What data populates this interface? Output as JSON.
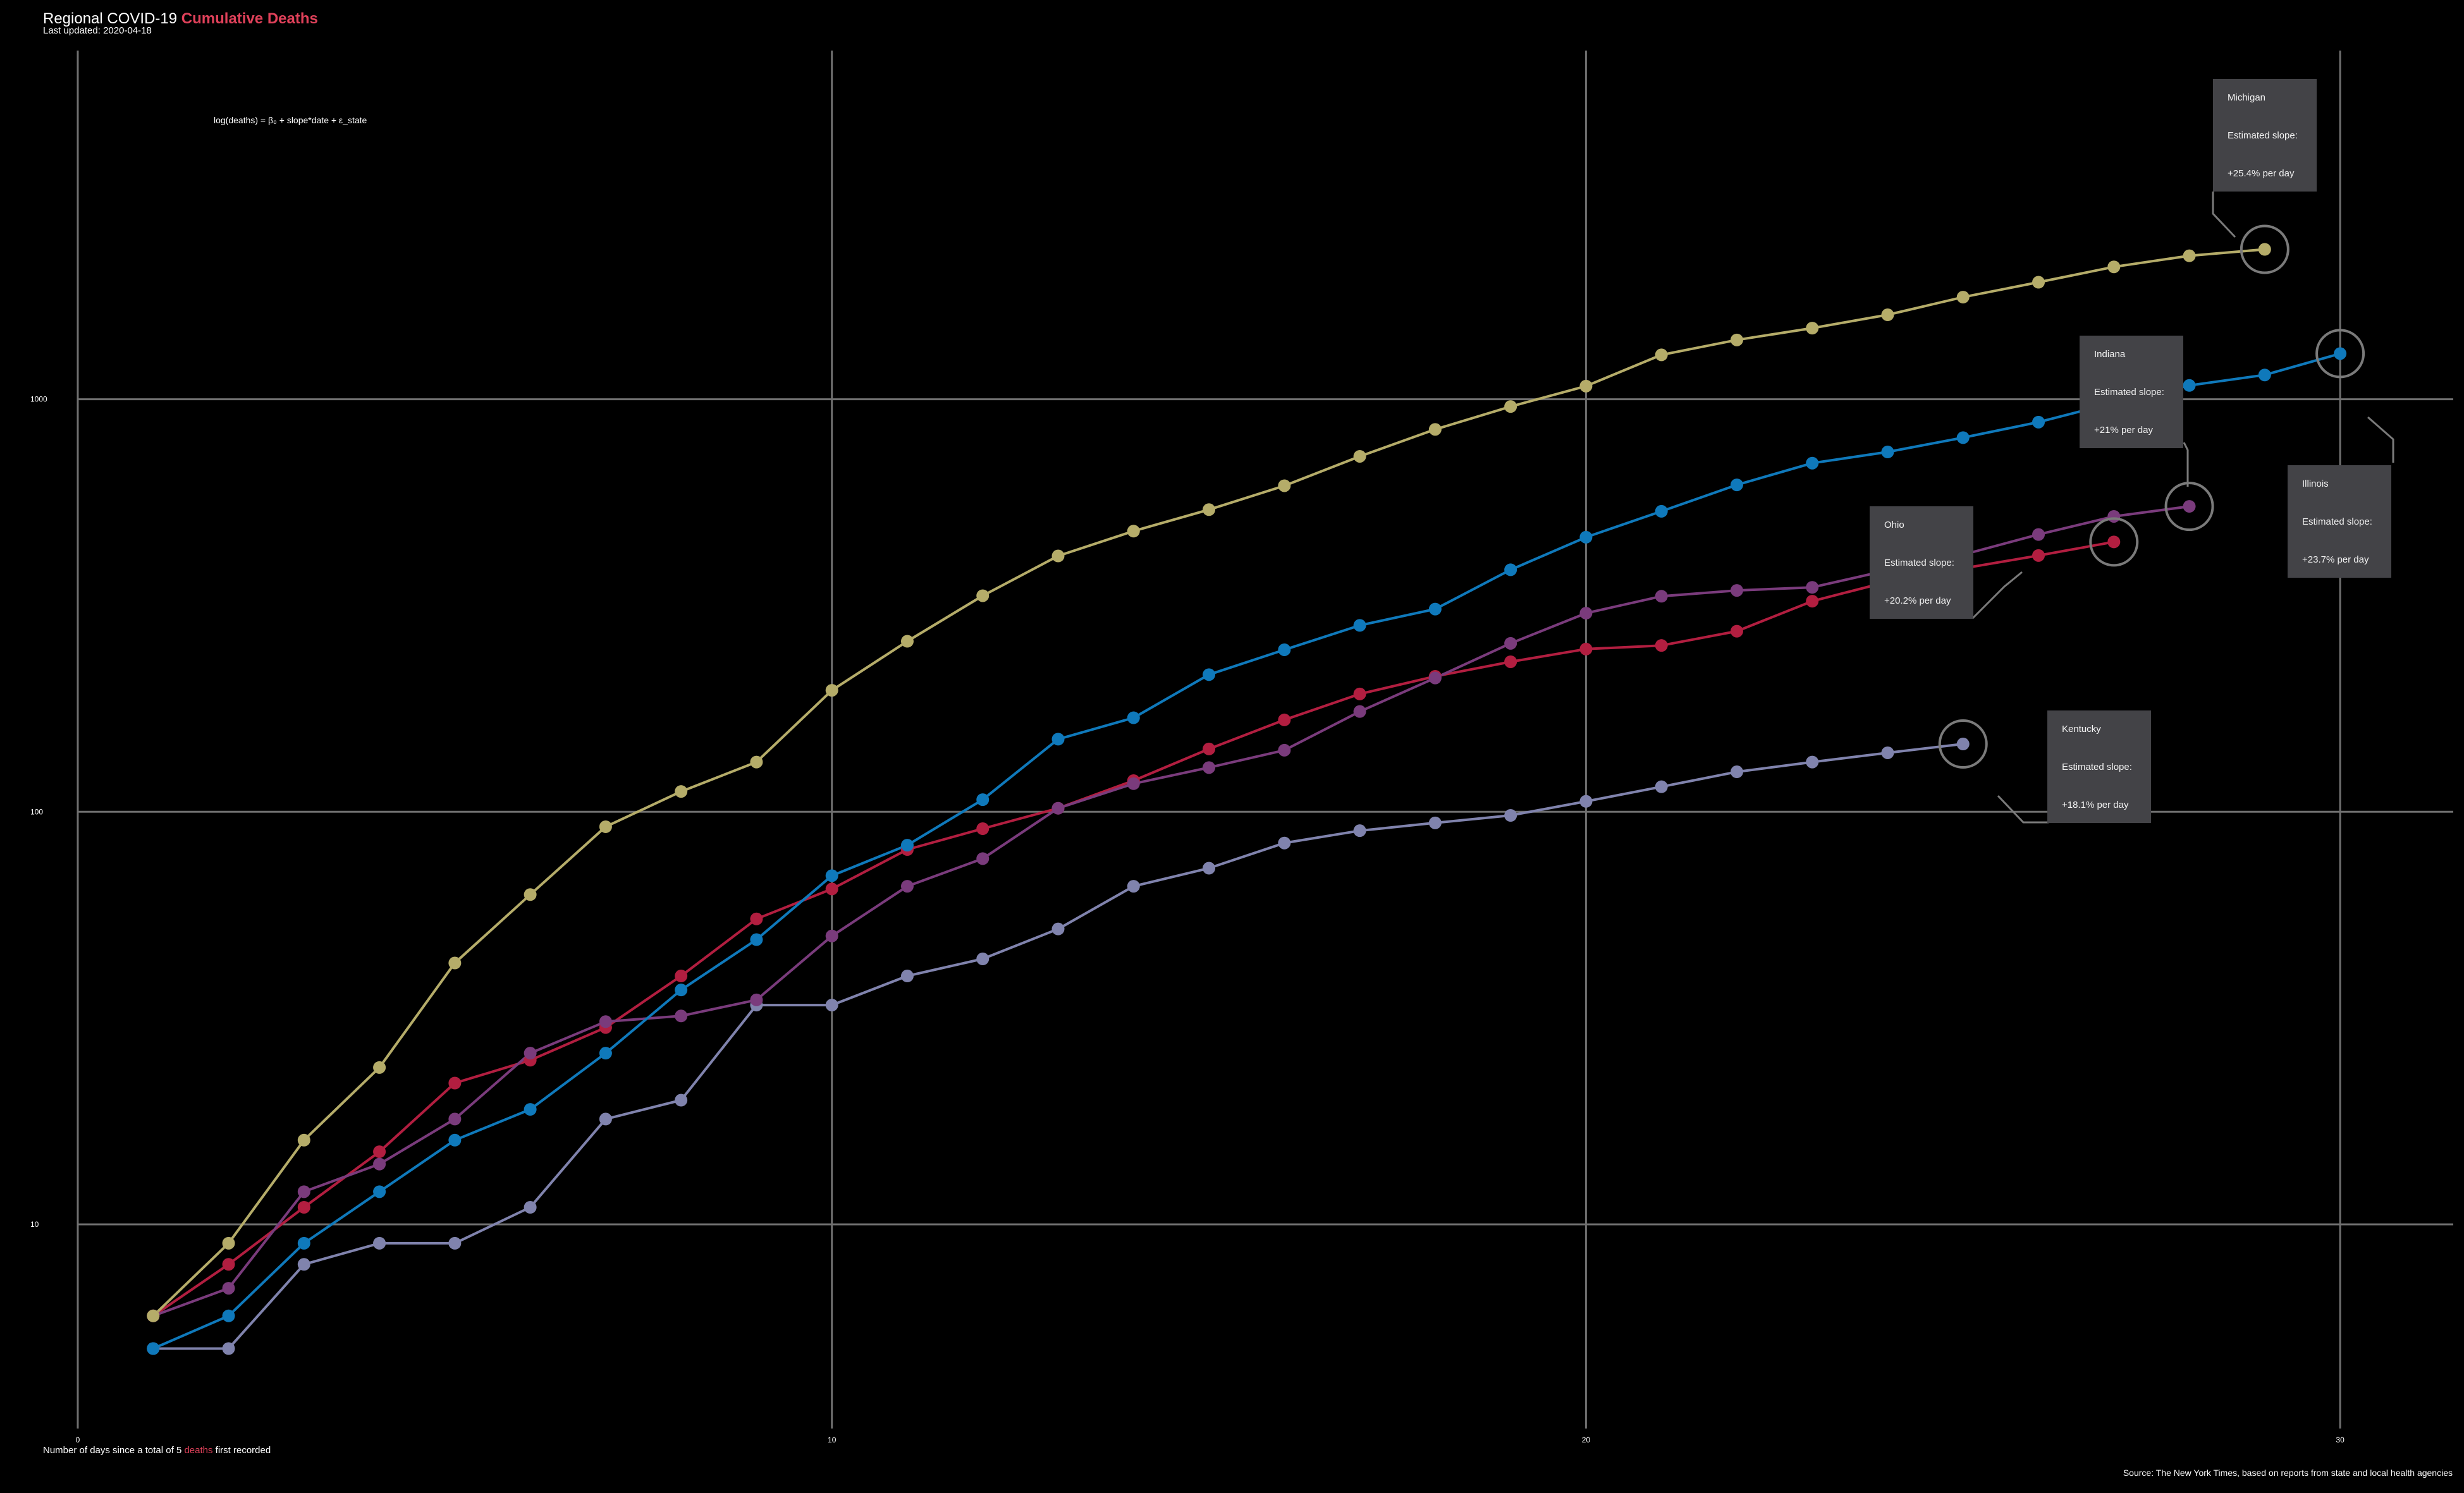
{
  "header": {
    "title_main": "Regional COVID-19",
    "title_accent": "Cumulative Deaths",
    "subtitle": "Last updated: 2020-04-18",
    "formula": "log(deaths) = β₀ + slope*date + ε_state"
  },
  "footer": {
    "xcaption_prefix": "Number of days since a total of 5",
    "xcaption_accent": "deaths",
    "xcaption_suffix": "first recorded",
    "source": "Source: The New York Times, based on reports from state and local health agencies"
  },
  "colors": {
    "background": "#000000",
    "grid": "#6f6f6f",
    "accent": "#e0415a",
    "annotation_bg": "#434347"
  },
  "annotations": [
    {
      "state": "Michigan",
      "label": "Estimated slope:",
      "value": "+25.4% per day"
    },
    {
      "state": "Indiana",
      "label": "Estimated slope:",
      "value": "+21% per day"
    },
    {
      "state": "Illinois",
      "label": "Estimated slope:",
      "value": "+23.7% per day"
    },
    {
      "state": "Ohio",
      "label": "Estimated slope:",
      "value": "+20.2% per day"
    },
    {
      "state": "Kentucky",
      "label": "Estimated slope:",
      "value": "+18.1% per day"
    }
  ],
  "chart_data": {
    "type": "line",
    "title": "Regional COVID-19 Cumulative Deaths",
    "xlabel": "Number of days since a total of 5 deaths first recorded",
    "ylabel": "",
    "y_scale": "log",
    "xlim": [
      0,
      31.5
    ],
    "ylim": [
      3.2,
      7000
    ],
    "x_ticks": [
      "0",
      "10",
      "20",
      "30"
    ],
    "y_ticks": [
      "10",
      "100",
      "1000"
    ],
    "grid": true,
    "series": [
      {
        "name": "Michigan",
        "color": "#b5ac69",
        "x": [
          1,
          2,
          3,
          4,
          5,
          6,
          7,
          8,
          9,
          10,
          11,
          12,
          13,
          14,
          15,
          16,
          17,
          18,
          19,
          20,
          21,
          22,
          23,
          24,
          25,
          26,
          27,
          28,
          29
        ],
        "values": [
          6,
          9,
          16,
          24,
          43,
          63,
          92,
          112,
          132,
          197,
          259,
          334,
          417,
          479,
          540,
          617,
          727,
          845,
          960,
          1076,
          1281,
          1392,
          1487,
          1602,
          1768,
          1921,
          2093,
          2227,
          2308
        ]
      },
      {
        "name": "Indiana",
        "color": "#0f79bb",
        "x": [
          1,
          2,
          3,
          4,
          5,
          6,
          7,
          8,
          9,
          10,
          11,
          12,
          13,
          14,
          15,
          16,
          17,
          18,
          19,
          20,
          21,
          22,
          23,
          24,
          25,
          26,
          27,
          28,
          29,
          30
        ],
        "values": [
          5,
          6,
          9,
          12,
          16,
          19,
          26,
          37,
          49,
          70,
          83,
          107,
          150,
          169,
          215,
          247,
          283,
          310,
          386,
          463,
          535,
          620,
          700,
          745,
          807,
          880,
          980,
          1080,
          1145,
          1290
        ]
      },
      {
        "name": "Illinois",
        "color": "#7a3b7c",
        "x": [
          1,
          2,
          3,
          4,
          5,
          6,
          7,
          8,
          9,
          10,
          11,
          12,
          13,
          14,
          15,
          16,
          17,
          18,
          19,
          20,
          21,
          22,
          23,
          24,
          25,
          26,
          27,
          28
        ],
        "values": [
          6,
          7,
          12,
          14,
          18,
          26,
          31,
          32,
          35,
          50,
          66,
          77,
          102,
          117,
          128,
          141,
          175,
          211,
          256,
          303,
          333,
          344,
          350,
          385,
          420,
          470,
          520,
          550
        ]
      },
      {
        "name": "Ohio",
        "color": "#b21e40",
        "x": [
          1,
          2,
          3,
          4,
          5,
          6,
          7,
          8,
          9,
          10,
          11,
          12,
          13,
          14,
          15,
          16,
          17,
          18,
          19,
          20,
          21,
          22,
          23,
          24,
          25,
          26,
          27
        ],
        "values": [
          6,
          8,
          11,
          15,
          22,
          25,
          30,
          40,
          55,
          65,
          81,
          91,
          102,
          119,
          142,
          167,
          193,
          213,
          231,
          248,
          253,
          274,
          324,
          361,
          389,
          418,
          451
        ]
      },
      {
        "name": "Kentucky",
        "color": "#8083ad",
        "x": [
          1,
          2,
          3,
          4,
          5,
          6,
          7,
          8,
          9,
          10,
          11,
          12,
          13,
          14,
          15,
          16,
          17,
          18,
          19,
          20,
          21,
          22,
          23,
          24,
          25
        ],
        "values": [
          5,
          5,
          8,
          9,
          9,
          11,
          18,
          20,
          34,
          34,
          40,
          44,
          52,
          66,
          73,
          84,
          90,
          94,
          98,
          106,
          115,
          125,
          132,
          139,
          146
        ]
      }
    ]
  }
}
